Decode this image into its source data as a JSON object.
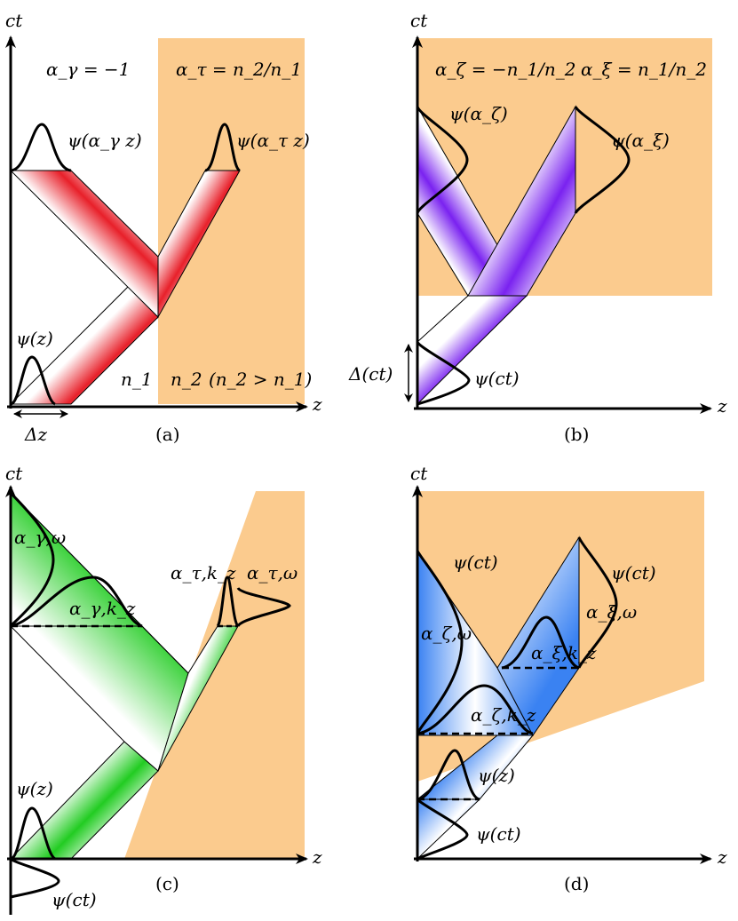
{
  "colors": {
    "medium": "#fbcb8e",
    "red_beam": "#e8202a",
    "violet_beam": "#7a22f0",
    "green_beam": "#22cc22",
    "blue_beam": "#3a82f2",
    "axis": "#000000"
  },
  "axis_labels": {
    "vertical": "ct",
    "horizontal": "z"
  },
  "panels": {
    "a": {
      "caption": "(a)",
      "alpha_gamma": "α_γ = −1",
      "alpha_tau": "α_τ = n_2/n_1",
      "psi_gamma": "ψ(α_γ z)",
      "psi_tau": "ψ(α_τ z)",
      "psi_z": "ψ(z)",
      "n1": "n_1",
      "n2": "n_2",
      "n_relation": "(n_2 > n_1)",
      "delta_z": "Δz"
    },
    "b": {
      "caption": "(b)",
      "alpha_zeta": "α_ζ = −n_1/n_2",
      "alpha_xi": "α_ξ = n_1/n_2",
      "psi_zeta": "ψ(α_ζ)",
      "psi_xi": "ψ(α_ξ)",
      "psi_ct": "ψ(ct)",
      "delta_ct": "Δ(ct)"
    },
    "c": {
      "caption": "(c)",
      "alpha_gamma_omega": "α_γ,ω",
      "alpha_gamma_kz": "α_γ,k_z",
      "alpha_tau_kz": "α_τ,k_z",
      "alpha_tau_omega": "α_τ,ω",
      "psi_z": "ψ(z)",
      "psi_ct": "ψ(ct)"
    },
    "d": {
      "caption": "(d)",
      "psi_ct_top": "ψ(ct)",
      "psi_ct_right": "ψ(ct)",
      "alpha_zeta_omega": "α_ζ,ω",
      "alpha_xi_omega": "α_ξ,ω",
      "alpha_xi_kz": "α_ξ,k_z",
      "alpha_zeta_kz": "α_ζ,k_z",
      "psi_z": "ψ(z)",
      "psi_ct_bottom": "ψ(ct)"
    }
  }
}
